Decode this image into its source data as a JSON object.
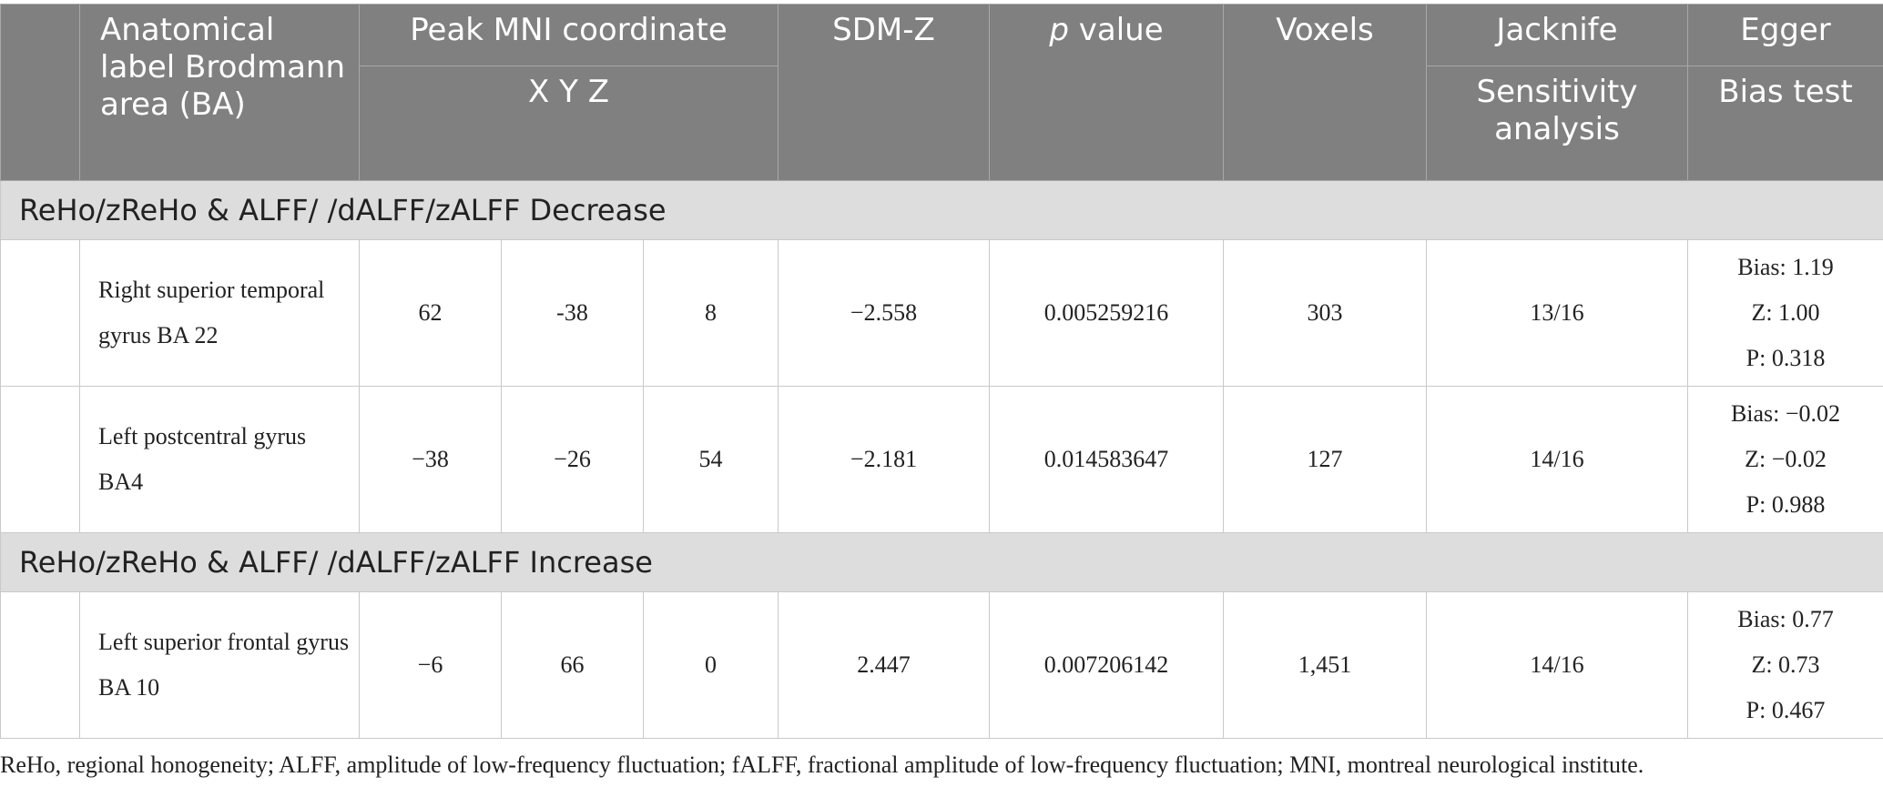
{
  "header": {
    "anatomical_label": "Anatomical label Brodmann area (BA)",
    "peak_mni": "Peak MNI coordinate",
    "xyz": "X Y Z",
    "sdm_z": "SDM-Z",
    "p_italic": "p",
    "p_rest": " value",
    "voxels": "Voxels",
    "jacknife": "Jacknife",
    "sensitivity": "Sensitivity analysis",
    "egger": "Egger",
    "bias_test": "Bias test"
  },
  "sections": [
    {
      "title": "ReHo/zReHo & ALFF/ /dALFF/zALFF Decrease",
      "rows": [
        {
          "label": "Right superior temporal gyrus BA 22",
          "x": "62",
          "y": "-38",
          "z": "8",
          "sdmz": "−2.558",
          "p": "0.005259216",
          "voxels": "303",
          "jack": "13/16",
          "bias": "Bias: 1.19",
          "z_egger": "Z: 1.00",
          "p_egger": "P: 0.318"
        },
        {
          "label": "Left postcentral gyrus BA4",
          "x": "−38",
          "y": "−26",
          "z": "54",
          "sdmz": "−2.181",
          "p": "0.014583647",
          "voxels": "127",
          "jack": "14/16",
          "bias": "Bias: −0.02",
          "z_egger": "Z: −0.02",
          "p_egger": "P: 0.988"
        }
      ]
    },
    {
      "title": "ReHo/zReHo & ALFF/ /dALFF/zALFF Increase",
      "rows": [
        {
          "label": "Left superior frontal gyrus BA 10",
          "x": "−6",
          "y": "66",
          "z": "0",
          "sdmz": "2.447",
          "p": "0.007206142",
          "voxels": "1,451",
          "jack": "14/16",
          "bias": "Bias: 0.77",
          "z_egger": "Z: 0.73",
          "p_egger": "P: 0.467"
        }
      ]
    }
  ],
  "footnote": "ReHo, regional honogeneity; ALFF, amplitude of low-frequency fluctuation; fALFF, fractional amplitude of low-frequency fluctuation; MNI, montreal neurological institute."
}
